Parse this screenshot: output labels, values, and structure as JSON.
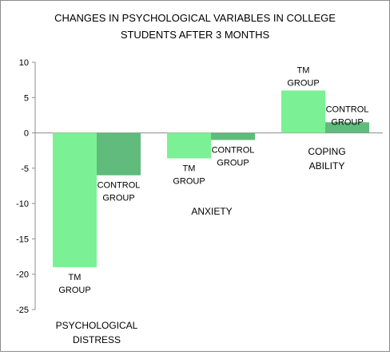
{
  "chart_data": {
    "type": "bar",
    "title": [
      "CHANGES IN PSYCHOLOGICAL VARIABLES IN  COLLEGE",
      "STUDENTS AFTER 3 MONTHS"
    ],
    "xlabel": "",
    "ylabel": "",
    "ylim": [
      -25,
      10
    ],
    "yticks": [
      10,
      5,
      0,
      -5,
      -10,
      -15,
      -20,
      -25
    ],
    "grid": false,
    "legend": "none",
    "colors": {
      "tm": "#7cf095",
      "control": "#60bb7c"
    },
    "categories": [
      {
        "label": [
          "PSYCHOLOGICAL",
          "DISTRESS"
        ],
        "bars": [
          {
            "series": "tm",
            "value": -19,
            "label": [
              "TM",
              "GROUP"
            ]
          },
          {
            "series": "control",
            "value": -6,
            "label": [
              "CONTROL",
              "GROUP"
            ]
          }
        ]
      },
      {
        "label": [
          "ANXIETY"
        ],
        "bars": [
          {
            "series": "tm",
            "value": -3.6,
            "label": [
              "TM",
              "GROUP"
            ]
          },
          {
            "series": "control",
            "value": -1,
            "label": [
              "CONTROL",
              "GROUP"
            ]
          }
        ]
      },
      {
        "label": [
          "COPING",
          "ABILITY"
        ],
        "bars": [
          {
            "series": "tm",
            "value": 6,
            "label": [
              "TM",
              "GROUP"
            ]
          },
          {
            "series": "control",
            "value": 1.5,
            "label": [
              "CONTROL",
              "GROUP"
            ]
          }
        ]
      }
    ]
  }
}
